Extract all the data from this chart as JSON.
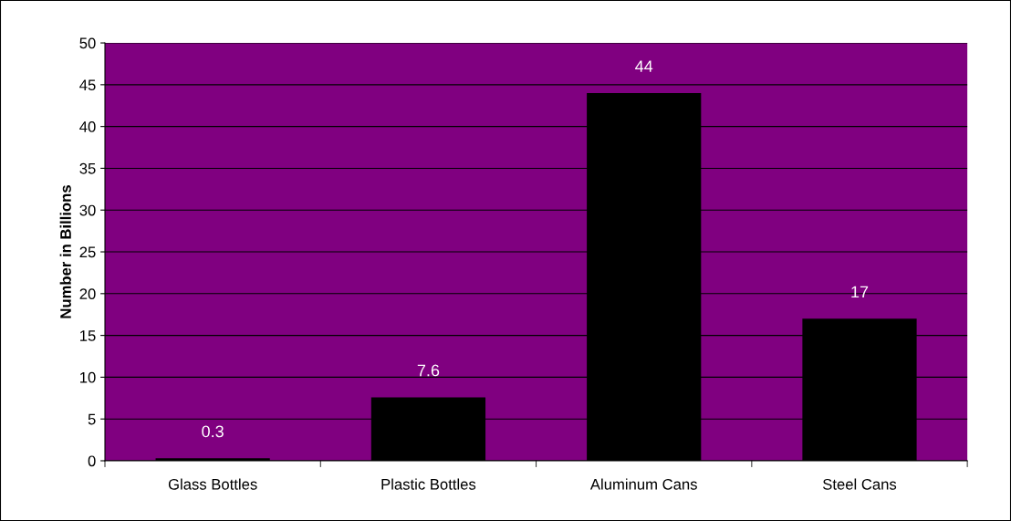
{
  "chart_data": {
    "type": "bar",
    "ylabel": "Number in Billions",
    "categories": [
      "Glass Bottles",
      "Plastic Bottles",
      "Aluminum Cans",
      "Steel Cans"
    ],
    "values": [
      0.3,
      7.6,
      44,
      17
    ],
    "color": "#000000",
    "ylim": [
      0,
      50
    ],
    "yticks": [
      0,
      5,
      10,
      15,
      20,
      25,
      30,
      35,
      40,
      45,
      50
    ],
    "grid": "y",
    "data_labels": true,
    "legend": false
  }
}
